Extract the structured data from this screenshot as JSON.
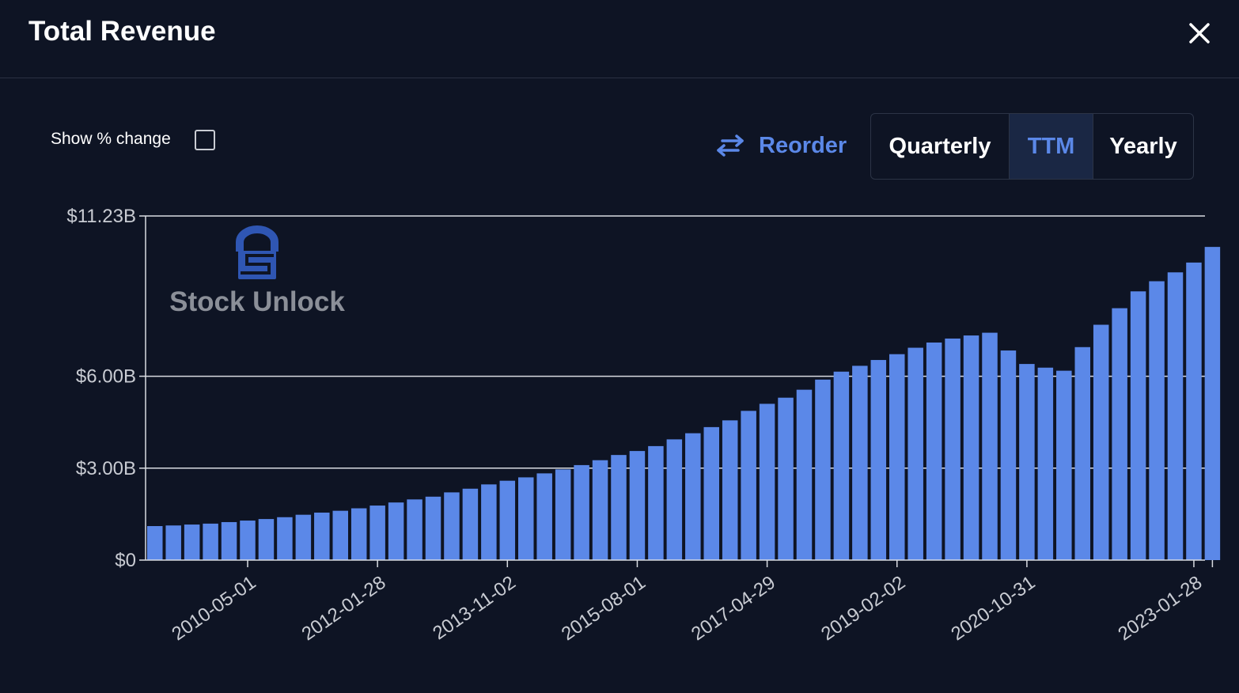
{
  "header": {
    "title": "Total Revenue",
    "close_icon": "close-icon"
  },
  "controls": {
    "show_pct_label": "Show % change",
    "show_pct_checked": false,
    "reorder_label": "Reorder",
    "reorder_icon": "swap-arrows-icon",
    "periods": [
      "Quarterly",
      "TTM",
      "Yearly"
    ],
    "selected_period": "TTM"
  },
  "watermark": {
    "text": "Stock Unlock",
    "icon": "stock-unlock-logo-icon"
  },
  "colors": {
    "background": "#0e1424",
    "bar": "#5b88e8",
    "accent": "#5b88e8",
    "gridline": "#d9dce2",
    "selected_period_bg": "#1a2744"
  },
  "chart_data": {
    "type": "bar",
    "title": "Total Revenue",
    "xlabel": "",
    "ylabel": "",
    "ylim": [
      0,
      11.23
    ],
    "y_ticks": [
      {
        "value": 0,
        "label": "$0"
      },
      {
        "value": 3.0,
        "label": "$3.00B"
      },
      {
        "value": 6.0,
        "label": "$6.00B"
      },
      {
        "value": 11.23,
        "label": "$11.23B"
      }
    ],
    "x_tick_labels": [
      "2010-05-01",
      "2012-01-28",
      "2013-11-02",
      "2015-08-01",
      "2017-04-29",
      "2019-02-02",
      "2020-10-31",
      "2023-01-28"
    ],
    "x_tick_bar_index": [
      5,
      12,
      19,
      26,
      33,
      40,
      47,
      56
    ],
    "grid": "horizontal",
    "values": [
      1.11,
      1.13,
      1.16,
      1.19,
      1.24,
      1.29,
      1.34,
      1.4,
      1.48,
      1.55,
      1.61,
      1.69,
      1.78,
      1.88,
      1.98,
      2.07,
      2.21,
      2.33,
      2.47,
      2.59,
      2.7,
      2.83,
      2.96,
      3.1,
      3.26,
      3.43,
      3.56,
      3.72,
      3.94,
      4.14,
      4.34,
      4.56,
      4.87,
      5.1,
      5.3,
      5.56,
      5.89,
      6.15,
      6.34,
      6.53,
      6.72,
      6.93,
      7.1,
      7.23,
      7.33,
      7.42,
      6.84,
      6.4,
      6.28,
      6.18,
      6.95,
      7.68,
      8.22,
      8.77,
      9.1,
      9.39,
      9.71,
      10.22
    ]
  }
}
